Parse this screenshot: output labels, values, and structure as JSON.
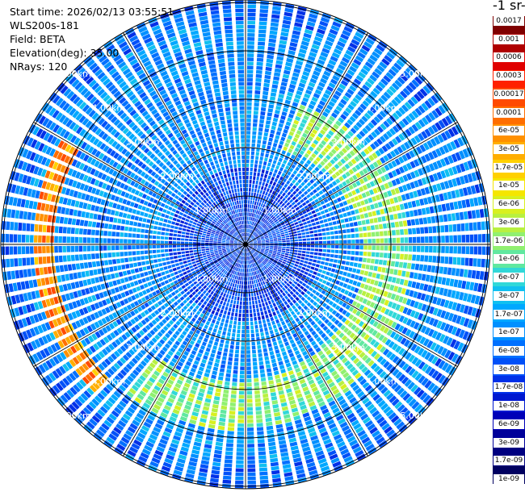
{
  "info": {
    "start_time": "Start time: 2026/02/13 03:55:51",
    "instrument": "WLS200s-181",
    "field": "Field: BETA",
    "elevation": "Elevation(deg): 35.00",
    "nrays": "NRays: 120"
  },
  "colorbar": {
    "title": "-1 sr-",
    "labels": [
      "0.0017",
      "0.001",
      "0.0006",
      "0.0003",
      "0.00017",
      "0.0001",
      "6e-05",
      "3e-05",
      "1.7e-05",
      "1e-05",
      "6e-06",
      "3e-06",
      "1.7e-06",
      "1e-06",
      "6e-07",
      "3e-07",
      "1.7e-07",
      "1e-07",
      "6e-08",
      "3e-08",
      "1.7e-08",
      "1e-08",
      "6e-09",
      "3e-09",
      "1.7e-09",
      "1e-09"
    ],
    "colors": [
      "#7f0000",
      "#b00000",
      "#e00000",
      "#ff2000",
      "#ff4a00",
      "#ff6e00",
      "#ff9000",
      "#ffae00",
      "#ffd000",
      "#f5e600",
      "#d8f020",
      "#b8f040",
      "#90f070",
      "#60e8a0",
      "#30d8d8",
      "#10c0f0",
      "#00a8ff",
      "#0090ff",
      "#0070ff",
      "#0050f8",
      "#0030e8",
      "#0018d0",
      "#0000b8",
      "#00009a",
      "#000080",
      "#000060"
    ]
  },
  "chart_data": {
    "type": "heatmap",
    "projection": "polar PPI",
    "field": "BETA",
    "units": "sr-1",
    "elevation_deg": 35.0,
    "n_rays": 120,
    "range_rings_km": [
      1.0,
      2.0,
      3.0,
      4.0,
      5.0
    ],
    "ring_labels": [
      "1.00km",
      "2.00km",
      "3.00km",
      "4.00km",
      "5.00km"
    ],
    "max_range_km": 5.05,
    "azimuth_spokes_deg": [
      0,
      30,
      60,
      90,
      120,
      150,
      180,
      210,
      240,
      270,
      300,
      330
    ],
    "color_scale": "log",
    "color_range": [
      1e-09,
      0.0017
    ],
    "features": [
      {
        "description": "yellow-green aerosol arc",
        "range_km": [
          2.1,
          3.1
        ],
        "azimuth_deg": [
          20,
          220
        ],
        "approx_value": 1.5e-06
      },
      {
        "description": "red/orange band",
        "range_km": [
          3.95,
          4.35
        ],
        "azimuth_deg": [
          225,
          300
        ],
        "approx_value": 6e-05
      },
      {
        "description": "cyan background",
        "approx_value": 1e-07
      },
      {
        "description": "dark blue near field",
        "range_km": [
          0.0,
          1.5
        ],
        "approx_value": 3e-08
      }
    ]
  }
}
